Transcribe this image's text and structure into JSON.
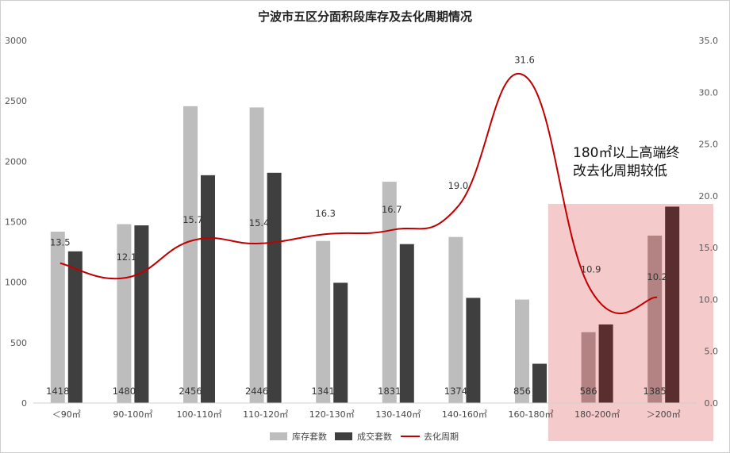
{
  "chart_data": {
    "type": "bar",
    "title": "宁波市五区分面积段库存及去化周期情况",
    "categories": [
      "＜90㎡",
      "90-100㎡",
      "100-110㎡",
      "110-120㎡",
      "120-130㎡",
      "130-140㎡",
      "140-160㎡",
      "160-180㎡",
      "180-200㎡",
      "＞200㎡"
    ],
    "series": [
      {
        "name": "库存套数",
        "kind": "bar",
        "axis": "left",
        "color": "#bdbdbd",
        "values": [
          1418,
          1480,
          2456,
          2446,
          1341,
          1831,
          1374,
          856,
          586,
          1385
        ]
      },
      {
        "name": "成交套数",
        "kind": "bar",
        "axis": "left",
        "color": "#3f3f3f",
        "values": [
          1255,
          1470,
          1885,
          1905,
          995,
          1315,
          870,
          325,
          650,
          1625
        ]
      },
      {
        "name": "去化周期",
        "kind": "line",
        "axis": "right",
        "color": "#c00000",
        "values": [
          13.5,
          12.1,
          15.7,
          15.4,
          16.3,
          16.7,
          19.0,
          31.6,
          10.9,
          10.2
        ],
        "labels": [
          "13.5",
          "12.1",
          "15.7",
          "15.4",
          "16.3",
          "16.7",
          "19.0",
          "31.6",
          "10.9",
          "10.2"
        ]
      }
    ],
    "inventory_labels": [
      "1418",
      "1480",
      "2456",
      "2446",
      "1341",
      "1831",
      "1374",
      "856",
      "586",
      "1385"
    ],
    "y_left": {
      "min": 0,
      "max": 3000,
      "ticks": [
        "0",
        "500",
        "1000",
        "1500",
        "2000",
        "2500",
        "3000"
      ]
    },
    "y_right": {
      "min": 0,
      "max": 35,
      "ticks": [
        "0.0",
        "5.0",
        "10.0",
        "15.0",
        "20.0",
        "25.0",
        "30.0",
        "35.0"
      ]
    },
    "grid": false,
    "legend": "bottom-center",
    "highlight": {
      "from_category": "180-200㎡",
      "to_category": "＞200㎡",
      "color": "#f2bdbd"
    },
    "annotation": {
      "lines": [
        "180㎡以上高端终",
        "改去化周期较低"
      ]
    }
  }
}
